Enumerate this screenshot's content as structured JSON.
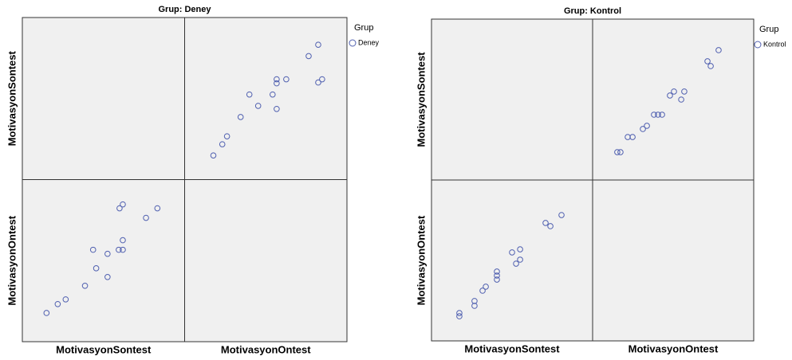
{
  "chart_data": [
    {
      "type": "scatter-matrix",
      "title": "Grup: Deney",
      "legend": {
        "title": "Grup",
        "label": "Deney"
      },
      "color": "#5060b0",
      "xlim": [
        0,
        100
      ],
      "ylim": [
        0,
        100
      ],
      "series": [
        {
          "name": "MotivasyonSontest",
          "values": [
            14.9,
            21.8,
            26.7,
            38.6,
            52.5,
            45.5,
            52.5,
            43.6,
            59.4,
            61.9,
            61.9,
            76.2,
            83.2,
            59.9,
            61.9
          ]
        },
        {
          "name": "MotivasyonOntest",
          "values": [
            17.7,
            23.2,
            26.1,
            34.5,
            39.9,
            45.3,
            54.2,
            56.7,
            56.7,
            56.7,
            62.6,
            76.4,
            82.3,
            82.3,
            84.7
          ]
        }
      ]
    },
    {
      "type": "scatter-matrix",
      "title": "Grup: Kontrol",
      "legend": {
        "title": "Grup",
        "label": "Kontrol"
      },
      "color": "#5060b0",
      "xlim": [
        0,
        100
      ],
      "ylim": [
        0,
        100
      ],
      "series": [
        {
          "name": "MotivasyonSontest",
          "values": [
            17.3,
            17.3,
            26.7,
            26.7,
            31.7,
            33.7,
            40.6,
            40.6,
            40.6,
            52.5,
            55.0,
            50.0,
            55.0,
            73.8,
            70.8,
            80.7
          ]
        },
        {
          "name": "MotivasyonOntest",
          "values": [
            15.3,
            17.3,
            21.8,
            24.8,
            31.2,
            33.7,
            38.1,
            40.6,
            43.1,
            48.0,
            50.5,
            55.0,
            56.9,
            71.3,
            73.3,
            78.2
          ]
        }
      ]
    }
  ]
}
